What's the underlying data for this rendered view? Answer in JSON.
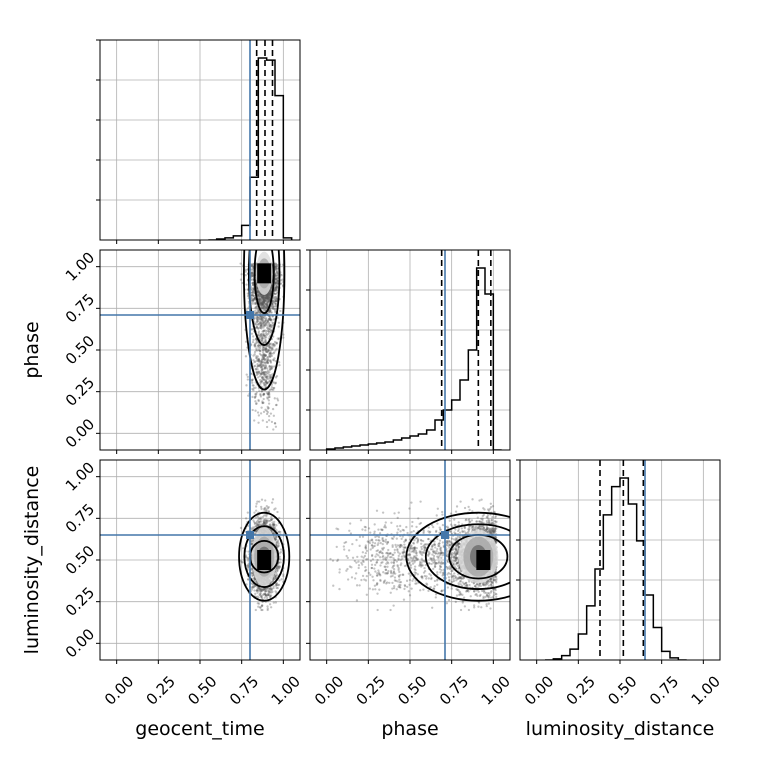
{
  "chart_data": {
    "type": "corner",
    "title": "",
    "parameters": [
      "geocent_time",
      "phase",
      "luminosity_distance"
    ],
    "axis_labels": {
      "x": [
        "geocent_time",
        "phase",
        "luminosity_distance"
      ],
      "y": [
        "phase",
        "luminosity_distance"
      ]
    },
    "axis_range": [
      -0.1,
      1.1
    ],
    "tick_values": [
      0.0,
      0.25,
      0.5,
      0.75,
      1.0
    ],
    "tick_labels": [
      "0.00",
      "0.25",
      "0.50",
      "0.75",
      "1.00"
    ],
    "grid": true,
    "colors": {
      "truth": "#4477aa",
      "hist": "#000000",
      "scatter": "#555555"
    },
    "truths": {
      "geocent_time": 0.8,
      "phase": 0.71,
      "luminosity_distance": 0.65
    },
    "quantiles": {
      "geocent_time": [
        0.84,
        0.89,
        0.935
      ],
      "phase": [
        0.69,
        0.91,
        0.985
      ],
      "luminosity_distance": [
        0.38,
        0.52,
        0.64
      ]
    },
    "histograms": {
      "geocent_time": {
        "bin_edges": [
          0.55,
          0.6,
          0.65,
          0.7,
          0.75,
          0.8,
          0.85,
          0.9,
          0.95,
          1.0,
          1.05
        ],
        "counts": [
          0.0,
          0.005,
          0.01,
          0.02,
          0.07,
          0.3,
          0.87,
          0.86,
          0.69,
          0.01
        ]
      },
      "phase": {
        "bin_edges": [
          0.0,
          0.05,
          0.1,
          0.15,
          0.2,
          0.25,
          0.3,
          0.35,
          0.4,
          0.45,
          0.5,
          0.55,
          0.6,
          0.65,
          0.7,
          0.75,
          0.8,
          0.85,
          0.9,
          0.95,
          1.0,
          1.05
        ],
        "counts": [
          0.005,
          0.01,
          0.015,
          0.02,
          0.025,
          0.03,
          0.035,
          0.04,
          0.05,
          0.06,
          0.07,
          0.08,
          0.1,
          0.15,
          0.2,
          0.25,
          0.35,
          0.5,
          0.91,
          0.78,
          0.0
        ]
      },
      "luminosity_distance": {
        "bin_edges": [
          0.05,
          0.1,
          0.15,
          0.2,
          0.25,
          0.3,
          0.35,
          0.4,
          0.45,
          0.5,
          0.55,
          0.6,
          0.65,
          0.7,
          0.75,
          0.8,
          0.85,
          0.9
        ],
        "counts": [
          0.0,
          0.005,
          0.02,
          0.05,
          0.12,
          0.25,
          0.42,
          0.67,
          0.8,
          0.84,
          0.72,
          0.55,
          0.3,
          0.15,
          0.04,
          0.01,
          0.0
        ]
      }
    },
    "density_2d": {
      "phase_vs_geocent_time": {
        "center": [
          0.885,
          0.96
        ],
        "peak": [
          0.885,
          0.96
        ]
      },
      "luminosity_distance_vs_geocent_time": {
        "center": [
          0.885,
          0.52
        ],
        "peak": [
          0.885,
          0.5
        ]
      },
      "luminosity_distance_vs_phase": {
        "center": [
          0.91,
          0.52
        ],
        "peak": [
          0.94,
          0.5
        ]
      }
    }
  }
}
